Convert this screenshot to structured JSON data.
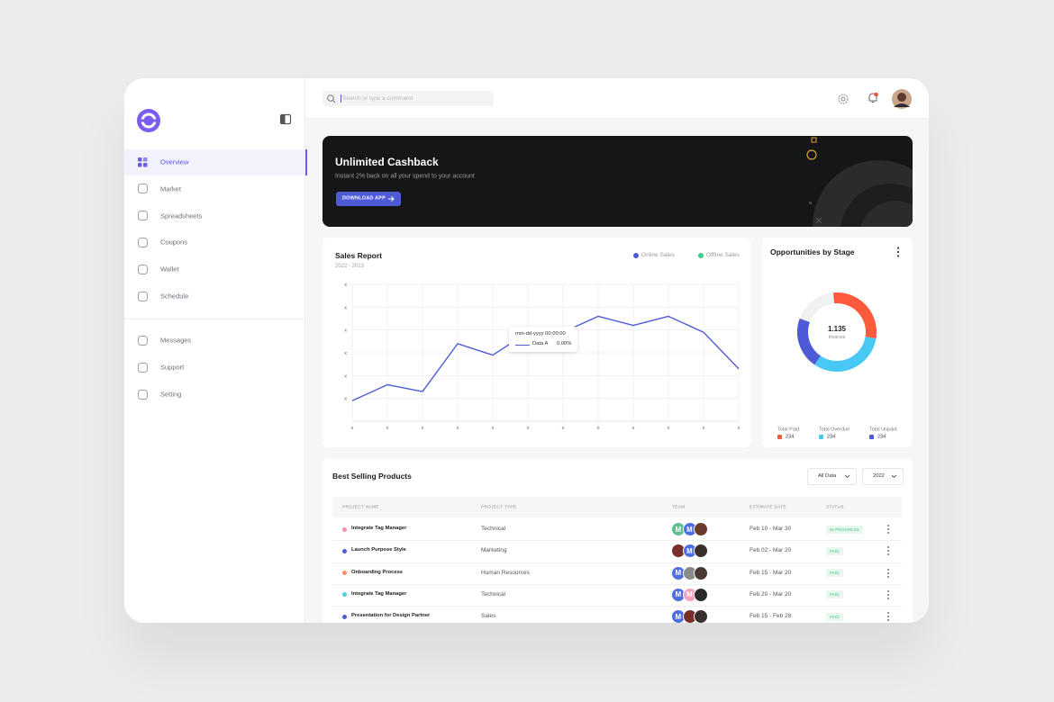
{
  "sidebar": {
    "items": [
      "Overview",
      "Market",
      "Spreadsheets",
      "Coupons",
      "Wallet",
      "Schedule"
    ],
    "secondary": [
      "Messages",
      "Support",
      "Setting"
    ]
  },
  "header": {
    "search_placeholder": "Search or type a command"
  },
  "banner": {
    "title": "Unlimited Cashback",
    "subtitle": "Instant 2% back on all your spend to your account",
    "button": "DOWNLOAD APP"
  },
  "chart_data": [
    {
      "type": "line",
      "title": "Sales Report",
      "subtitle": "2022 - 2023",
      "categories": [
        "x",
        "x",
        "x",
        "x",
        "x",
        "x",
        "x",
        "x",
        "x",
        "x",
        "x",
        "x"
      ],
      "series": [
        {
          "name": "Online Sales",
          "color": "#4f5bd5",
          "values": [
            0.9,
            1.6,
            1.3,
            3.4,
            2.9,
            3.9,
            3.9,
            4.6,
            4.2,
            4.6,
            3.9,
            2.3
          ]
        },
        {
          "name": "Offline Sales",
          "color": "#3ecf8e"
        }
      ],
      "ylim": [
        0,
        6
      ],
      "yticks": [
        {
          "value": 1,
          "label": "x"
        },
        {
          "value": 2,
          "label": "x"
        },
        {
          "value": 3,
          "label": "x"
        },
        {
          "value": 4,
          "label": "x"
        },
        {
          "value": 5,
          "label": "x"
        },
        {
          "value": 6,
          "label": "x"
        }
      ],
      "grid": true,
      "tooltip": {
        "title": "mm-dd-yyyy 00:00:00",
        "series": "Data A",
        "value": "0.00%"
      }
    },
    {
      "type": "donut",
      "title": "Opportunities by Stage",
      "center_value": "1.135",
      "center_label": "Invoices",
      "categories": [
        "Total Paid",
        "Total Overdue",
        "Total Unpaid"
      ],
      "values": [
        29,
        32,
        21
      ],
      "range": [
        0,
        100
      ],
      "colors": [
        "#ff5a3c",
        "#48c9f5",
        "#4f5bd5"
      ],
      "legend_values": [
        234,
        234,
        234
      ]
    }
  ],
  "products": {
    "title": "Best Selling Products",
    "filters": [
      "All Data",
      "2022"
    ],
    "columns": [
      "PROJECT NAME",
      "PROJECT TYPE",
      "TEAM",
      "ESTIMATE DATE",
      "STATUS"
    ],
    "rows": [
      {
        "name": "Integrate Tag Manager",
        "type": "Technical",
        "date": "Feb 10 - Mar 30",
        "status": "IN PROGRESS",
        "color": "#f48fb1",
        "team": [
          {
            "initial": "M",
            "color": "#5fc08f"
          },
          {
            "initial": "M",
            "color": "#4f6fe0"
          },
          {
            "color": "#6b3a2e"
          }
        ]
      },
      {
        "name": "Launch Purpose Style",
        "type": "Marketing",
        "date": "Feb 02 - Mar 20",
        "status": "PAID",
        "color": "#4f5bd5",
        "team": [
          {
            "color": "#7a2e2a"
          },
          {
            "initial": "M",
            "color": "#4f6fe0"
          },
          {
            "color": "#3a3030"
          }
        ]
      },
      {
        "name": "Onboarding Process",
        "type": "Human Resources",
        "date": "Feb 15 - Mar 20",
        "status": "PAID",
        "color": "#ff8a65",
        "team": [
          {
            "initial": "M",
            "color": "#4f6fe0"
          },
          {
            "color": "#8a8a8a"
          },
          {
            "color": "#4a3a34"
          }
        ]
      },
      {
        "name": "Integrate Tag Manager",
        "type": "Technical",
        "date": "Feb 20 - Mar 20",
        "status": "PAID",
        "color": "#4dd0e1",
        "team": [
          {
            "initial": "M",
            "color": "#4f6fe0"
          },
          {
            "initial": "M",
            "color": "#f2a0c0"
          },
          {
            "color": "#2a2a2a"
          }
        ]
      },
      {
        "name": "Presentation for Design Partner",
        "type": "Sales",
        "date": "Feb 15 - Feb 28",
        "status": "PAID",
        "color": "#4f5bd5",
        "team": [
          {
            "initial": "M",
            "color": "#4f6fe0"
          },
          {
            "color": "#7a2e2a"
          },
          {
            "color": "#3a3030"
          }
        ]
      }
    ]
  }
}
